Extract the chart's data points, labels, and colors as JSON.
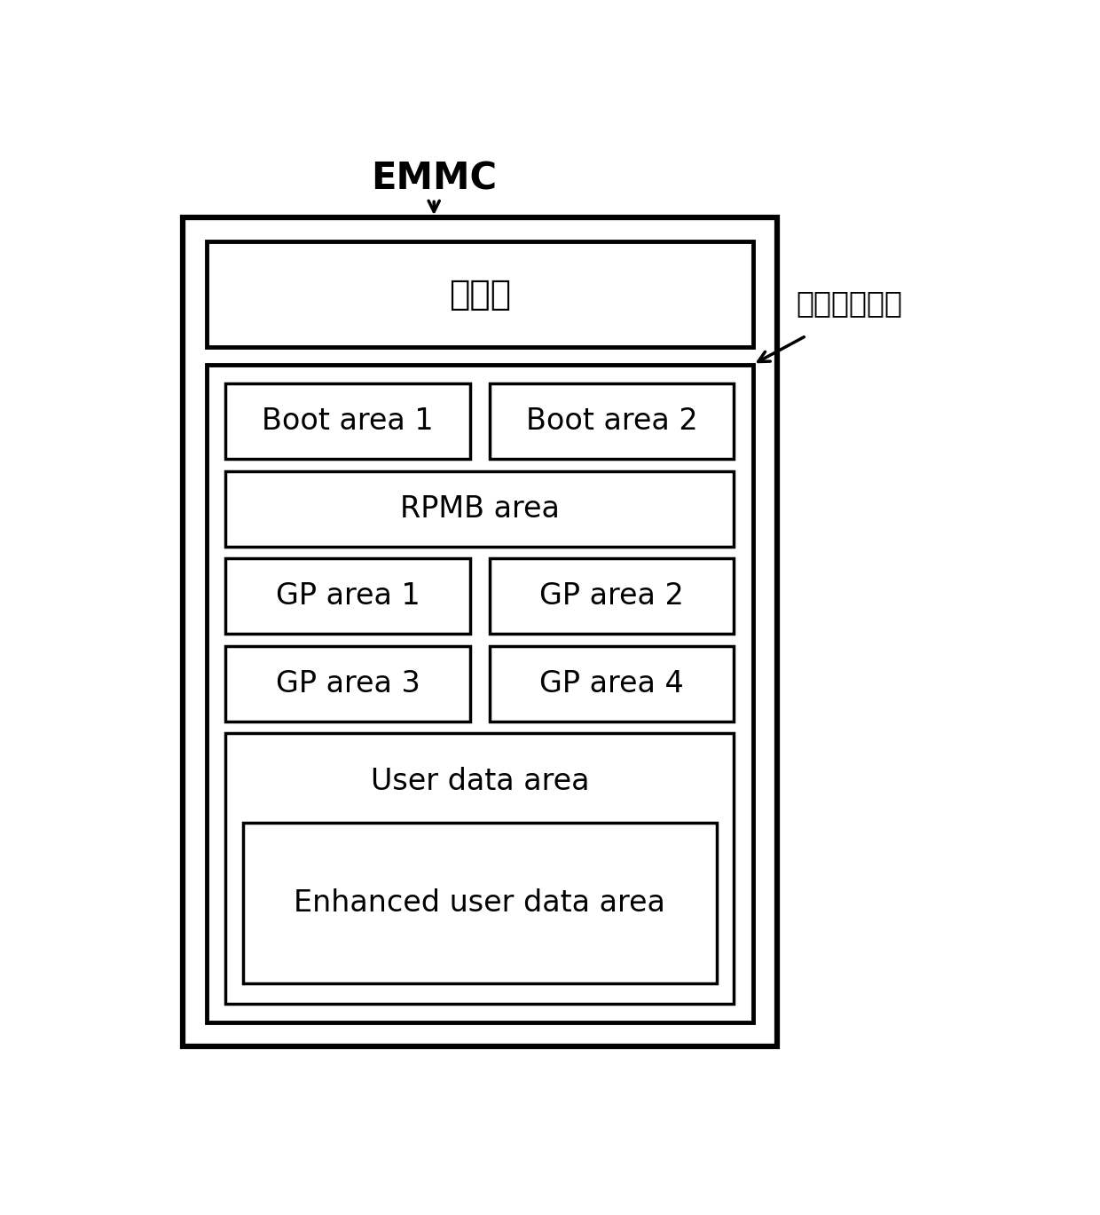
{
  "title_emmc": "EMMC",
  "title_syspart": "系统操作分区",
  "controller_label": "控制器",
  "boot1_label": "Boot area 1",
  "boot2_label": "Boot area 2",
  "rpmb_label": "RPMB area",
  "gp1_label": "GP area 1",
  "gp2_label": "GP area 2",
  "gp3_label": "GP area 3",
  "gp4_label": "GP area 4",
  "user_label": "User data area",
  "enhanced_label": "Enhanced user data area",
  "bg_color": "#ffffff",
  "box_color": "#000000",
  "text_color": "#000000",
  "outer_lw": 4.5,
  "mid_lw": 3.5,
  "inner_lw": 2.5,
  "emmc_fontsize": 30,
  "ctrl_fontsize": 28,
  "syspart_fontsize": 24,
  "area_fontsize": 24
}
